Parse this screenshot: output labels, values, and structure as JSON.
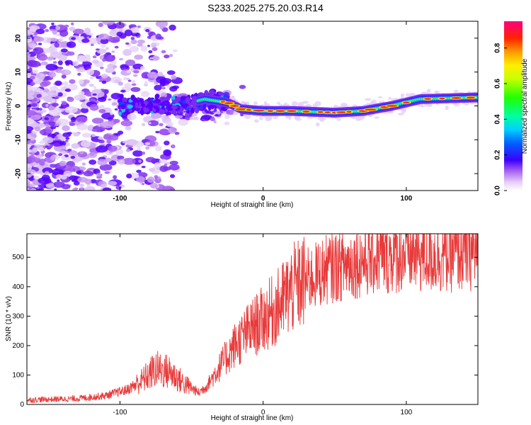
{
  "title": "S233.2025.275.20.03.R14",
  "chart_data": [
    {
      "type": "heatmap",
      "xlabel": "Height of straight line (km)",
      "ylabel": "Frequency (Hz)",
      "xlim": [
        -165,
        150
      ],
      "ylim": [
        -25,
        25
      ],
      "xticks": [
        -100,
        0,
        100
      ],
      "yticks": [
        -20,
        -10,
        0,
        10,
        20
      ],
      "colorbar": {
        "label": "Normalized spectral amplitude",
        "range": [
          0,
          0.95
        ],
        "ticks": [
          0.0,
          0.2,
          0.4,
          0.6,
          0.8
        ]
      },
      "ridge": {
        "description_points": [
          {
            "x": -60,
            "y": 0
          },
          {
            "x": -40,
            "y": 2
          },
          {
            "x": -25,
            "y": 1
          },
          {
            "x": -15,
            "y": -1
          },
          {
            "x": 0,
            "y": -1.5
          },
          {
            "x": 20,
            "y": -1.5
          },
          {
            "x": 50,
            "y": -2
          },
          {
            "x": 70,
            "y": -1.5
          },
          {
            "x": 90,
            "y": 0
          },
          {
            "x": 110,
            "y": 2
          },
          {
            "x": 150,
            "y": 2.5
          }
        ]
      }
    },
    {
      "type": "line",
      "xlabel": "Height of straight line (km)",
      "ylabel": "SNR (10 * v/v)",
      "xlim": [
        -165,
        150
      ],
      "ylim": [
        0,
        580
      ],
      "xticks": [
        -100,
        0,
        100
      ],
      "yticks": [
        0,
        100,
        200,
        300,
        400,
        500
      ],
      "color": "#e83a3a",
      "envelope": [
        {
          "x": -165,
          "y": 15
        },
        {
          "x": -130,
          "y": 20
        },
        {
          "x": -110,
          "y": 30
        },
        {
          "x": -95,
          "y": 50
        },
        {
          "x": -85,
          "y": 80
        },
        {
          "x": -75,
          "y": 120
        },
        {
          "x": -65,
          "y": 110
        },
        {
          "x": -55,
          "y": 70
        },
        {
          "x": -45,
          "y": 40
        },
        {
          "x": -40,
          "y": 60
        },
        {
          "x": -30,
          "y": 130
        },
        {
          "x": -20,
          "y": 200
        },
        {
          "x": -10,
          "y": 250
        },
        {
          "x": 0,
          "y": 290
        },
        {
          "x": 10,
          "y": 330
        },
        {
          "x": 20,
          "y": 390
        },
        {
          "x": 30,
          "y": 420
        },
        {
          "x": 45,
          "y": 460
        },
        {
          "x": 60,
          "y": 480
        },
        {
          "x": 80,
          "y": 500
        },
        {
          "x": 100,
          "y": 510
        },
        {
          "x": 120,
          "y": 505
        },
        {
          "x": 150,
          "y": 520
        }
      ]
    }
  ]
}
